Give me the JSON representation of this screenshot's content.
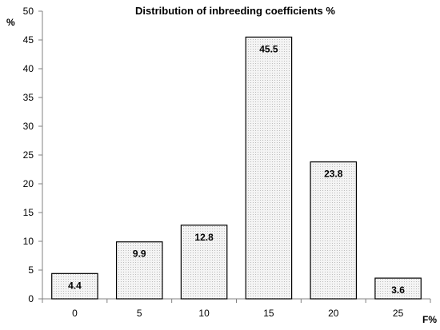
{
  "chart_data": {
    "type": "bar",
    "title": "Distribution of inbreeding coefficients %",
    "xlabel": "F%",
    "ylabel": "%",
    "categories": [
      "0",
      "5",
      "10",
      "15",
      "20",
      "25"
    ],
    "values": [
      4.4,
      9.9,
      12.8,
      45.5,
      23.8,
      3.6
    ],
    "value_labels": [
      "4.4",
      "9.9",
      "12.8",
      "45.5",
      "23.8",
      "3.6"
    ],
    "ylim": [
      0,
      50
    ],
    "yticks": [
      0,
      5,
      10,
      15,
      20,
      25,
      30,
      35,
      40,
      45,
      50
    ],
    "grid": false,
    "legend": "none",
    "bar_fill": "dotted light gray",
    "colors": {
      "bar_border": "#000000",
      "bar_fill": "#f4f4f4",
      "bar_dot": "#b0b0b0",
      "axis": "#808080"
    }
  }
}
